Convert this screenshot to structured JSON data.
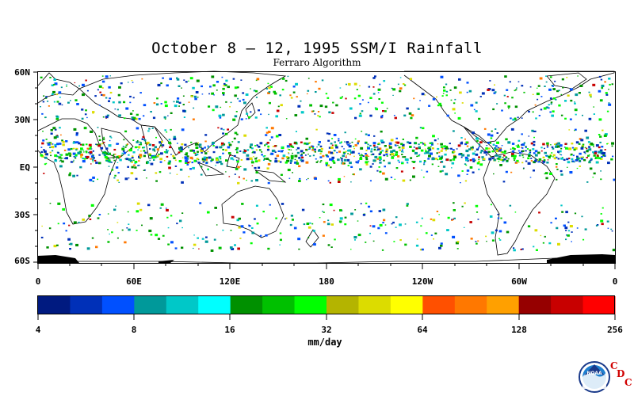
{
  "map": {
    "title": "October 8 – 12, 1995 SSM/I Rainfall",
    "subtitle": "Ferraro Algorithm",
    "lat_labels": [
      "60N",
      "30N",
      "EQ",
      "30S",
      "60S"
    ],
    "lon_labels": [
      "0",
      "60E",
      "120E",
      "180",
      "120W",
      "60W",
      "0"
    ]
  },
  "colorbar": {
    "tick_labels": [
      "4",
      "8",
      "16",
      "32",
      "64",
      "128",
      "256"
    ],
    "units": "mm/day",
    "colors": [
      "#001a80",
      "#0030b8",
      "#0050ff",
      "#00999a",
      "#00c8c8",
      "#00ffff",
      "#009000",
      "#00c000",
      "#00ff00",
      "#b4b400",
      "#dcdc00",
      "#ffff00",
      "#ff5000",
      "#ff7800",
      "#ffa000",
      "#960000",
      "#c80000",
      "#ff0000"
    ]
  },
  "logo": {
    "noaa_text": "NOAA",
    "cdc_letters": [
      "C",
      "D",
      "C"
    ]
  }
}
